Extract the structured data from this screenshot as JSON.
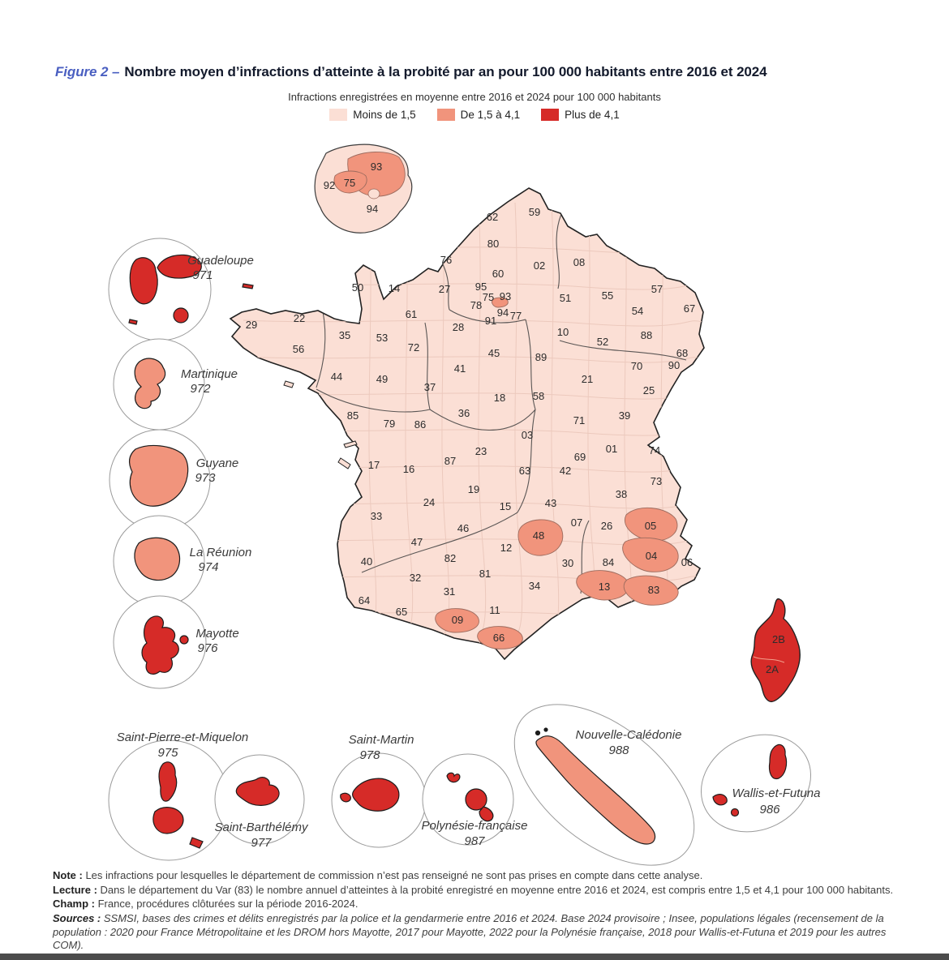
{
  "figure": {
    "label": "Figure 2 –",
    "title": "Nombre moyen d’infractions d’atteinte à la probité par an pour 100 000 habitants entre 2016 et 2024"
  },
  "legend": {
    "title": "Infractions enregistrées en moyenne entre 2016 et 2024 pour 100 000 habitants",
    "items": [
      {
        "label": "Moins de 1,5",
        "color": "#fbdfd5",
        "category": "low"
      },
      {
        "label": "De 1,5 à 4,1",
        "color": "#f1947c",
        "category": "mid"
      },
      {
        "label": "Plus de 4,1",
        "color": "#d62b28",
        "category": "high"
      }
    ]
  },
  "chart_data": {
    "type": "choropleth",
    "title": "Nombre moyen d’infractions d’atteinte à la probité par an pour 100 000 habitants entre 2016 et 2024",
    "unit": "infractions pour 100 000 habitants (moyenne 2016-2024)",
    "classes": [
      {
        "name": "low",
        "label": "Moins de 1,5"
      },
      {
        "name": "mid",
        "label": "De 1,5 à 4,1"
      },
      {
        "name": "high",
        "label": "Plus de 4,1"
      }
    ],
    "departments": [
      {
        "code": "59",
        "cat": "low"
      },
      {
        "code": "62",
        "cat": "low"
      },
      {
        "code": "80",
        "cat": "low"
      },
      {
        "code": "76",
        "cat": "low"
      },
      {
        "code": "02",
        "cat": "low"
      },
      {
        "code": "08",
        "cat": "low"
      },
      {
        "code": "60",
        "cat": "low"
      },
      {
        "code": "50",
        "cat": "low"
      },
      {
        "code": "14",
        "cat": "low"
      },
      {
        "code": "27",
        "cat": "low"
      },
      {
        "code": "95",
        "cat": "low"
      },
      {
        "code": "75",
        "cat": "mid"
      },
      {
        "code": "93",
        "cat": "mid"
      },
      {
        "code": "78",
        "cat": "low"
      },
      {
        "code": "94",
        "cat": "low"
      },
      {
        "code": "77",
        "cat": "low"
      },
      {
        "code": "91",
        "cat": "low"
      },
      {
        "code": "51",
        "cat": "low"
      },
      {
        "code": "55",
        "cat": "low"
      },
      {
        "code": "57",
        "cat": "low"
      },
      {
        "code": "54",
        "cat": "low"
      },
      {
        "code": "67",
        "cat": "low"
      },
      {
        "code": "61",
        "cat": "low"
      },
      {
        "code": "35",
        "cat": "low"
      },
      {
        "code": "53",
        "cat": "low"
      },
      {
        "code": "72",
        "cat": "low"
      },
      {
        "code": "28",
        "cat": "low"
      },
      {
        "code": "10",
        "cat": "low"
      },
      {
        "code": "52",
        "cat": "low"
      },
      {
        "code": "88",
        "cat": "low"
      },
      {
        "code": "68",
        "cat": "low"
      },
      {
        "code": "45",
        "cat": "low"
      },
      {
        "code": "89",
        "cat": "low"
      },
      {
        "code": "70",
        "cat": "low"
      },
      {
        "code": "90",
        "cat": "low"
      },
      {
        "code": "41",
        "cat": "low"
      },
      {
        "code": "44",
        "cat": "low"
      },
      {
        "code": "49",
        "cat": "low"
      },
      {
        "code": "21",
        "cat": "low"
      },
      {
        "code": "37",
        "cat": "low"
      },
      {
        "code": "25",
        "cat": "low"
      },
      {
        "code": "18",
        "cat": "low"
      },
      {
        "code": "58",
        "cat": "low"
      },
      {
        "code": "29",
        "cat": "low"
      },
      {
        "code": "22",
        "cat": "low"
      },
      {
        "code": "56",
        "cat": "low"
      },
      {
        "code": "85",
        "cat": "low"
      },
      {
        "code": "79",
        "cat": "low"
      },
      {
        "code": "86",
        "cat": "low"
      },
      {
        "code": "36",
        "cat": "low"
      },
      {
        "code": "39",
        "cat": "low"
      },
      {
        "code": "71",
        "cat": "low"
      },
      {
        "code": "03",
        "cat": "low"
      },
      {
        "code": "74",
        "cat": "low"
      },
      {
        "code": "01",
        "cat": "low"
      },
      {
        "code": "69",
        "cat": "low"
      },
      {
        "code": "23",
        "cat": "low"
      },
      {
        "code": "87",
        "cat": "low"
      },
      {
        "code": "17",
        "cat": "low"
      },
      {
        "code": "16",
        "cat": "low"
      },
      {
        "code": "42",
        "cat": "low"
      },
      {
        "code": "63",
        "cat": "low"
      },
      {
        "code": "73",
        "cat": "low"
      },
      {
        "code": "38",
        "cat": "low"
      },
      {
        "code": "19",
        "cat": "low"
      },
      {
        "code": "43",
        "cat": "low"
      },
      {
        "code": "15",
        "cat": "low"
      },
      {
        "code": "33",
        "cat": "low"
      },
      {
        "code": "24",
        "cat": "low"
      },
      {
        "code": "46",
        "cat": "low"
      },
      {
        "code": "07",
        "cat": "low"
      },
      {
        "code": "26",
        "cat": "low"
      },
      {
        "code": "05",
        "cat": "mid"
      },
      {
        "code": "48",
        "cat": "mid"
      },
      {
        "code": "12",
        "cat": "low"
      },
      {
        "code": "47",
        "cat": "low"
      },
      {
        "code": "04",
        "cat": "mid"
      },
      {
        "code": "06",
        "cat": "low"
      },
      {
        "code": "84",
        "cat": "low"
      },
      {
        "code": "30",
        "cat": "low"
      },
      {
        "code": "82",
        "cat": "low"
      },
      {
        "code": "40",
        "cat": "low"
      },
      {
        "code": "32",
        "cat": "low"
      },
      {
        "code": "81",
        "cat": "low"
      },
      {
        "code": "34",
        "cat": "low"
      },
      {
        "code": "13",
        "cat": "mid"
      },
      {
        "code": "83",
        "cat": "mid"
      },
      {
        "code": "31",
        "cat": "low"
      },
      {
        "code": "11",
        "cat": "low"
      },
      {
        "code": "64",
        "cat": "low"
      },
      {
        "code": "65",
        "cat": "low"
      },
      {
        "code": "09",
        "cat": "mid"
      },
      {
        "code": "66",
        "cat": "mid"
      },
      {
        "code": "2B",
        "cat": "high"
      },
      {
        "code": "2A",
        "cat": "high"
      }
    ],
    "idf_inset": [
      {
        "code": "92",
        "cat": "low"
      },
      {
        "code": "75",
        "cat": "mid"
      },
      {
        "code": "93",
        "cat": "mid"
      },
      {
        "code": "94",
        "cat": "low"
      }
    ],
    "territories": [
      {
        "name": "Guadeloupe",
        "code": "971",
        "cat": "high"
      },
      {
        "name": "Martinique",
        "code": "972",
        "cat": "mid"
      },
      {
        "name": "Guyane",
        "code": "973",
        "cat": "mid"
      },
      {
        "name": "La Réunion",
        "code": "974",
        "cat": "mid"
      },
      {
        "name": "Mayotte",
        "code": "976",
        "cat": "high"
      },
      {
        "name": "Saint-Pierre-et-Miquelon",
        "code": "975",
        "cat": "high"
      },
      {
        "name": "Saint-Barthélémy",
        "code": "977",
        "cat": "high"
      },
      {
        "name": "Saint-Martin",
        "code": "978",
        "cat": "high"
      },
      {
        "name": "Polynésie-française",
        "code": "987",
        "cat": "high"
      },
      {
        "name": "Nouvelle-Calédonie",
        "code": "988",
        "cat": "mid"
      },
      {
        "name": "Wallis-et-Futuna",
        "code": "986",
        "cat": "high"
      }
    ]
  },
  "notes": {
    "note_label": "Note :",
    "note_text": " Les infractions pour lesquelles le département de commission n’est pas renseigné ne sont pas prises en compte dans cette analyse.",
    "lecture_label": "Lecture :",
    "lecture_text": " Dans le département du Var (83) le nombre annuel d’atteintes à la probité enregistré en moyenne entre 2016 et 2024, est compris entre 1,5 et 4,1 pour 100 000 habitants.",
    "champ_label": "Champ :",
    "champ_text": " France, procédures clôturées sur la période 2016-2024.",
    "sources_label": "Sources :",
    "sources_text": " SSMSI, bases des crimes et délits enregistrés par la police et la gendarmerie entre 2016 et 2024. Base 2024 provisoire ; Insee, populations légales (recensement de la population : 2020 pour France Métropolitaine et les DROM hors Mayotte, 2017 pour Mayotte, 2022 pour la Polynésie française, 2018 pour Wallis-et-Futuna et 2019 pour les autres COM)."
  }
}
